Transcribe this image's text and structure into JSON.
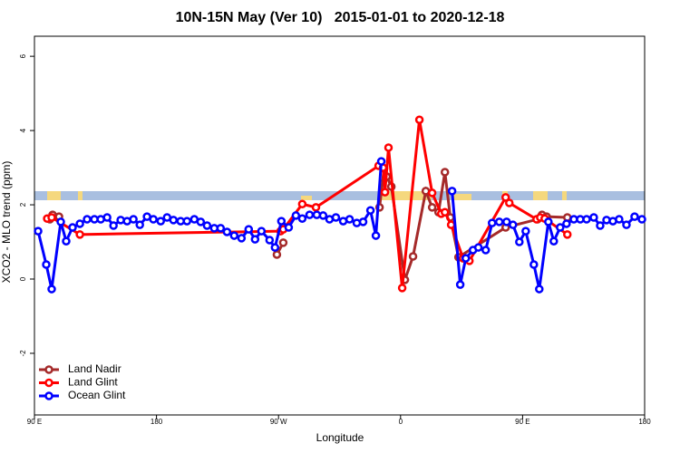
{
  "chart_data": {
    "type": "line",
    "title": "10N-15N May (Ver 10)   2015-01-01 to 2020-12-18",
    "xlabel": "Longitude",
    "ylabel": "XCO2 - MLO trend (ppm)",
    "xlim": [
      90,
      540
    ],
    "ylim": [
      -3.66,
      6.54
    ],
    "xticks": [
      {
        "value": 90,
        "label": "90 E"
      },
      180,
      {
        "value": 270,
        "label": "90 W"
      },
      {
        "value": 360,
        "label": "0"
      },
      {
        "value": 450,
        "label": "90 E"
      },
      {
        "value": 540,
        "label": "180"
      }
    ],
    "yticks": [
      -2,
      0,
      2,
      4,
      6
    ],
    "legend": "bottom-left",
    "series": [
      {
        "name": "Land Nadir",
        "color": "#a52a2a",
        "x": [
          101.4,
          103.4,
          108.1,
          123.5,
          268.8,
          273.5,
          288.2,
          344.5,
          347.8,
          349.8,
          353.2,
          363.2,
          369.2,
          378.6,
          383.3,
          388.0,
          392.7,
          396.7,
          402.7,
          437.5,
          461.0,
          464.3,
          467.7,
          483.0
        ],
        "values": [
          1.61,
          1.73,
          1.68,
          null,
          0.66,
          0.98,
          null,
          1.93,
          2.98,
          2.76,
          2.49,
          -0.02,
          0.61,
          2.37,
          1.93,
          1.8,
          2.88,
          1.66,
          0.59,
          1.39,
          1.61,
          1.73,
          1.68,
          1.66
        ]
      },
      {
        "name": "Land Glint",
        "color": "#ff0000",
        "x": [
          99.4,
          102.7,
          123.5,
          271.5,
          273.5,
          287.5,
          297.6,
          343.8,
          347.1,
          348.5,
          351.1,
          361.2,
          373.9,
          383.3,
          390.0,
          392.7,
          397.3,
          406.1,
          410.8,
          437.5,
          440.2,
          460.3,
          463.0,
          466.3,
          483.0
        ],
        "values": [
          1.63,
          1.66,
          1.2,
          1.29,
          1.34,
          2.02,
          1.93,
          3.05,
          3.0,
          2.34,
          3.54,
          -0.24,
          4.29,
          2.32,
          1.76,
          1.8,
          1.46,
          0.56,
          0.49,
          2.2,
          2.05,
          1.61,
          1.66,
          1.63,
          1.2
        ]
      },
      {
        "name": "Ocean Glint",
        "color": "#0000ff",
        "x": [
          92.7,
          98.7,
          102.7,
          109.4,
          113.4,
          118.1,
          123.5,
          128.8,
          134.2,
          138.9,
          143.6,
          148.3,
          153.6,
          158.3,
          163.0,
          167.7,
          173.0,
          177.7,
          183.1,
          187.8,
          192.5,
          197.8,
          202.5,
          207.9,
          212.6,
          217.3,
          222.6,
          227.3,
          232.0,
          237.3,
          242.7,
          248.0,
          252.7,
          257.4,
          263.4,
          267.4,
          272.1,
          277.5,
          282.8,
          287.5,
          292.9,
          298.2,
          302.9,
          307.6,
          312.3,
          317.7,
          322.4,
          327.7,
          332.4,
          337.8,
          341.8,
          345.8,
          372.0,
          398.0,
          404.0,
          408.1,
          413.4,
          417.4,
          422.8,
          427.5,
          432.8,
          438.2,
          442.9,
          447.6,
          452.3,
          458.3,
          462.3,
          469.0,
          473.0,
          477.7,
          482.4,
          487.8,
          492.5,
          497.2,
          502.5,
          507.2,
          511.9,
          516.6,
          521.2,
          526.6,
          532.6,
          538.0
        ],
        "values": [
          1.29,
          0.39,
          -0.27,
          1.54,
          1.02,
          1.39,
          1.49,
          1.61,
          1.61,
          1.61,
          1.66,
          1.44,
          1.59,
          1.56,
          1.61,
          1.46,
          1.68,
          1.61,
          1.56,
          1.66,
          1.59,
          1.56,
          1.56,
          1.61,
          1.54,
          1.44,
          1.37,
          1.37,
          1.27,
          1.17,
          1.1,
          1.34,
          1.07,
          1.29,
          1.05,
          0.85,
          1.56,
          1.39,
          1.71,
          1.63,
          1.73,
          1.73,
          1.71,
          1.61,
          1.66,
          1.56,
          1.61,
          1.51,
          1.54,
          1.85,
          1.17,
          3.17,
          null,
          2.37,
          -0.15,
          0.56,
          0.78,
          0.85,
          0.78,
          1.51,
          1.54,
          1.54,
          1.46,
          1.0,
          1.29,
          0.39,
          -0.27,
          1.54,
          1.02,
          1.39,
          1.49,
          1.61,
          1.61,
          1.61,
          1.66,
          1.44,
          1.59,
          1.56,
          1.61,
          1.46,
          1.68,
          1.61
        ]
      }
    ]
  }
}
